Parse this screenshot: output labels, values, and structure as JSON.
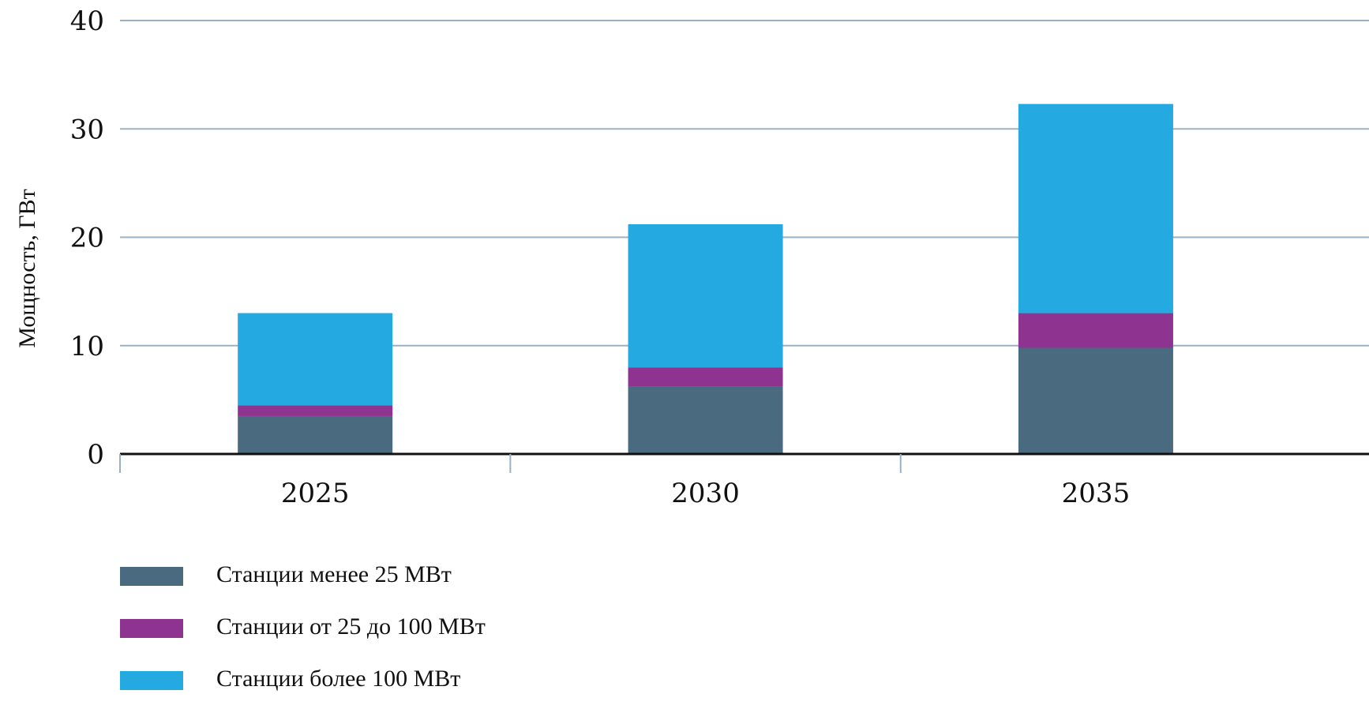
{
  "chart_data": {
    "type": "bar",
    "stacked": true,
    "title": "",
    "xlabel": "",
    "ylabel": "Мощность, ГВт",
    "categories": [
      "2025",
      "2030",
      "2035"
    ],
    "series": [
      {
        "name": "Станции менее 25 МВт",
        "values": [
          3.5,
          6.2,
          9.8
        ],
        "color": "#4a6a80"
      },
      {
        "name": "Станции от 25 до 100 МВт",
        "values": [
          1.0,
          1.8,
          3.2
        ],
        "color": "#8e3390"
      },
      {
        "name": "Станции более 100 МВт",
        "values": [
          8.5,
          13.2,
          19.3
        ],
        "color": "#24a9e0"
      }
    ],
    "ylim": [
      0,
      40
    ],
    "yticks": [
      0,
      10,
      20,
      30,
      40
    ],
    "grid": true,
    "gridline_color": "#9ab0c4",
    "legend_position": "bottom-left"
  }
}
